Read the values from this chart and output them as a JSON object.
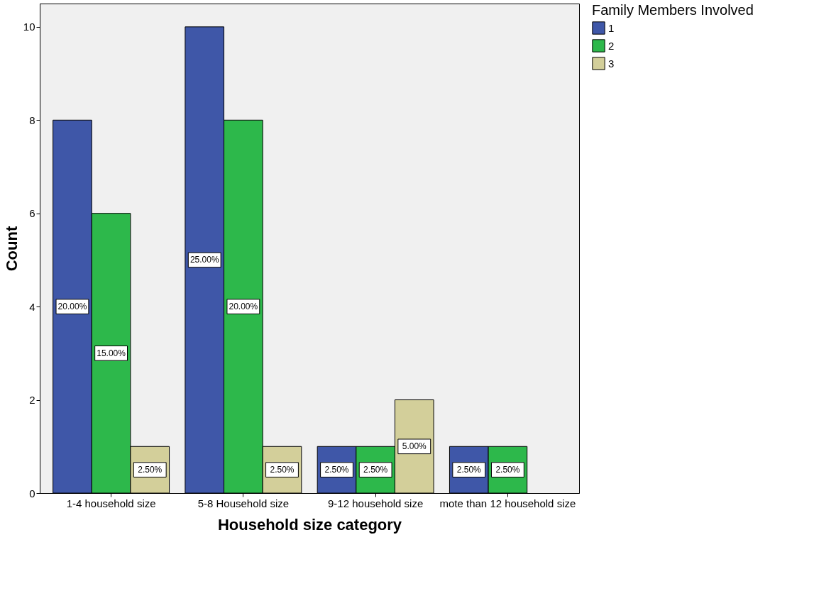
{
  "chart_data": {
    "type": "bar",
    "xlabel": "Household size category",
    "ylabel": "Count",
    "legend_title": "Family Members Involved",
    "categories": [
      "1-4 household size",
      "5-8 Household size",
      "9-12 household size",
      "mote than 12 household size"
    ],
    "series": [
      {
        "name": "1",
        "color": "#3f57a8",
        "values": [
          8,
          10,
          1,
          1
        ]
      },
      {
        "name": "2",
        "color": "#2db84b",
        "values": [
          6,
          8,
          1,
          1
        ]
      },
      {
        "name": "3",
        "color": "#d3cf9a",
        "values": [
          1,
          1,
          2,
          null
        ]
      }
    ],
    "annotations": [
      "20.00%",
      "15.00%",
      "2.50%",
      "25.00%",
      "20.00%",
      "2.50%",
      "2.50%",
      "2.50%",
      "5.00%",
      "2.50%",
      "2.50%"
    ],
    "ylim": [
      0,
      10.5
    ],
    "yticks": [
      0,
      2,
      4,
      6,
      8,
      10
    ],
    "grid": false,
    "legend": "top right"
  }
}
